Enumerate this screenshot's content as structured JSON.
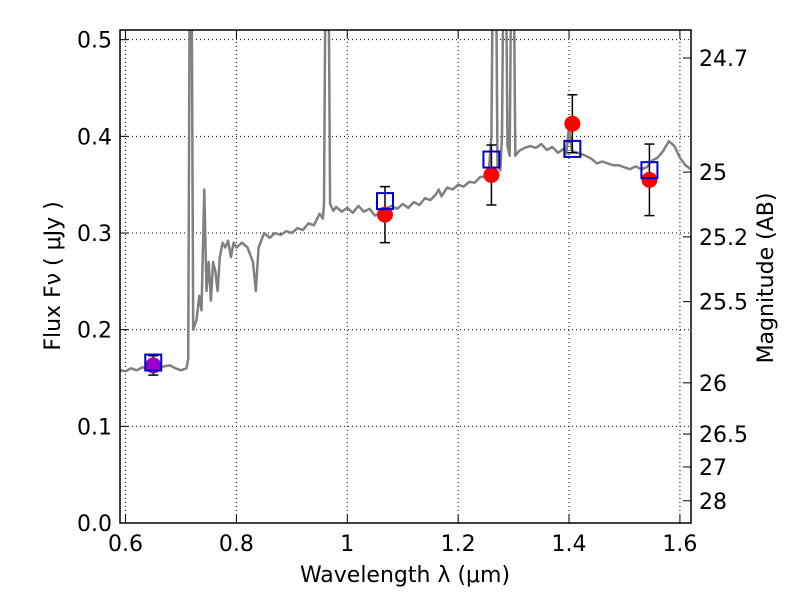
{
  "chart_data": {
    "type": "scatter",
    "xlabel": "Wavelength  λ (μm)",
    "ylabel": "Flux  Fν  ( μJy )",
    "y2label": "Magnitude (AB)",
    "xlim": [
      0.59,
      1.62
    ],
    "ylim": [
      0.0,
      0.51
    ],
    "xticks": [
      0.6,
      0.8,
      1.0,
      1.2,
      1.4,
      1.6
    ],
    "xtick_labels": [
      "0.6",
      "0.8",
      "1",
      "1.2",
      "1.4",
      "1.6"
    ],
    "yticks": [
      0.0,
      0.1,
      0.2,
      0.3,
      0.4,
      0.5
    ],
    "ytick_labels": [
      "0.0",
      "0.1",
      "0.2",
      "0.3",
      "0.4",
      "0.5"
    ],
    "y2ticks": [
      {
        "flux": 0.481,
        "label": "24.7"
      },
      {
        "flux": 0.363,
        "label": "25"
      },
      {
        "flux": 0.296,
        "label": "25.2"
      },
      {
        "flux": 0.229,
        "label": "25.5"
      },
      {
        "flux": 0.145,
        "label": "26"
      },
      {
        "flux": 0.092,
        "label": "26.5"
      },
      {
        "flux": 0.058,
        "label": "27"
      },
      {
        "flux": 0.023,
        "label": "28"
      }
    ],
    "grid": true,
    "grid_style": "dotted",
    "colors": {
      "model": "#808080",
      "observed": "#ff0000",
      "synthetic": "#0000cc",
      "errorbar": "#000000",
      "overlap": "#9900cc"
    },
    "series": [
      {
        "kind": "line",
        "points": [
          [
            0.59,
            0.158
          ],
          [
            0.6,
            0.157
          ],
          [
            0.61,
            0.16
          ],
          [
            0.62,
            0.158
          ],
          [
            0.63,
            0.161
          ],
          [
            0.64,
            0.16
          ],
          [
            0.65,
            0.163
          ],
          [
            0.66,
            0.161
          ],
          [
            0.67,
            0.162
          ],
          [
            0.68,
            0.163
          ],
          [
            0.69,
            0.16
          ],
          [
            0.7,
            0.158
          ],
          [
            0.71,
            0.16
          ],
          [
            0.713,
            0.17
          ],
          [
            0.716,
            0.6
          ],
          [
            0.719,
            0.6
          ],
          [
            0.722,
            0.2
          ],
          [
            0.728,
            0.21
          ],
          [
            0.733,
            0.235
          ],
          [
            0.737,
            0.22
          ],
          [
            0.742,
            0.345
          ],
          [
            0.746,
            0.24
          ],
          [
            0.75,
            0.27
          ],
          [
            0.754,
            0.23
          ],
          [
            0.758,
            0.27
          ],
          [
            0.762,
            0.26
          ],
          [
            0.766,
            0.24
          ],
          [
            0.77,
            0.275
          ],
          [
            0.775,
            0.29
          ],
          [
            0.78,
            0.285
          ],
          [
            0.785,
            0.292
          ],
          [
            0.79,
            0.275
          ],
          [
            0.795,
            0.29
          ],
          [
            0.8,
            0.285
          ],
          [
            0.81,
            0.29
          ],
          [
            0.82,
            0.285
          ],
          [
            0.83,
            0.27
          ],
          [
            0.835,
            0.24
          ],
          [
            0.84,
            0.285
          ],
          [
            0.85,
            0.3
          ],
          [
            0.86,
            0.295
          ],
          [
            0.87,
            0.3
          ],
          [
            0.88,
            0.298
          ],
          [
            0.89,
            0.302
          ],
          [
            0.9,
            0.3
          ],
          [
            0.91,
            0.305
          ],
          [
            0.92,
            0.303
          ],
          [
            0.93,
            0.31
          ],
          [
            0.94,
            0.308
          ],
          [
            0.95,
            0.32
          ],
          [
            0.956,
            0.315
          ],
          [
            0.958,
            0.33
          ],
          [
            0.961,
            0.6
          ],
          [
            0.966,
            0.6
          ],
          [
            0.969,
            0.33
          ],
          [
            0.975,
            0.323
          ],
          [
            0.98,
            0.327
          ],
          [
            0.99,
            0.322
          ],
          [
            1.0,
            0.326
          ],
          [
            1.01,
            0.321
          ],
          [
            1.02,
            0.328
          ],
          [
            1.03,
            0.322
          ],
          [
            1.04,
            0.325
          ],
          [
            1.05,
            0.318
          ],
          [
            1.06,
            0.32
          ],
          [
            1.07,
            0.325
          ],
          [
            1.08,
            0.328
          ],
          [
            1.09,
            0.325
          ],
          [
            1.1,
            0.33
          ],
          [
            1.11,
            0.326
          ],
          [
            1.12,
            0.332
          ],
          [
            1.13,
            0.329
          ],
          [
            1.14,
            0.336
          ],
          [
            1.15,
            0.334
          ],
          [
            1.16,
            0.34
          ],
          [
            1.165,
            0.345
          ],
          [
            1.17,
            0.338
          ],
          [
            1.18,
            0.347
          ],
          [
            1.19,
            0.345
          ],
          [
            1.2,
            0.35
          ],
          [
            1.21,
            0.348
          ],
          [
            1.22,
            0.353
          ],
          [
            1.23,
            0.352
          ],
          [
            1.24,
            0.358
          ],
          [
            1.25,
            0.358
          ],
          [
            1.255,
            0.362
          ],
          [
            1.26,
            0.4
          ],
          [
            1.263,
            0.6
          ],
          [
            1.268,
            0.6
          ],
          [
            1.271,
            0.37
          ],
          [
            1.276,
            0.365
          ],
          [
            1.279,
            0.4
          ],
          [
            1.282,
            0.6
          ],
          [
            1.286,
            0.6
          ],
          [
            1.289,
            0.39
          ],
          [
            1.293,
            0.38
          ],
          [
            1.296,
            0.6
          ],
          [
            1.3,
            0.6
          ],
          [
            1.303,
            0.38
          ],
          [
            1.31,
            0.385
          ],
          [
            1.32,
            0.388
          ],
          [
            1.33,
            0.39
          ],
          [
            1.34,
            0.388
          ],
          [
            1.35,
            0.392
          ],
          [
            1.36,
            0.386
          ],
          [
            1.37,
            0.389
          ],
          [
            1.38,
            0.383
          ],
          [
            1.39,
            0.387
          ],
          [
            1.395,
            0.382
          ],
          [
            1.4,
            0.41
          ],
          [
            1.405,
            0.385
          ],
          [
            1.41,
            0.384
          ],
          [
            1.42,
            0.382
          ],
          [
            1.43,
            0.38
          ],
          [
            1.44,
            0.377
          ],
          [
            1.45,
            0.372
          ],
          [
            1.46,
            0.374
          ],
          [
            1.47,
            0.372
          ],
          [
            1.48,
            0.37
          ],
          [
            1.49,
            0.37
          ],
          [
            1.5,
            0.368
          ],
          [
            1.51,
            0.366
          ],
          [
            1.52,
            0.369
          ],
          [
            1.53,
            0.366
          ],
          [
            1.54,
            0.368
          ],
          [
            1.55,
            0.375
          ],
          [
            1.56,
            0.378
          ],
          [
            1.57,
            0.385
          ],
          [
            1.58,
            0.395
          ],
          [
            1.59,
            0.39
          ],
          [
            1.6,
            0.378
          ],
          [
            1.61,
            0.37
          ],
          [
            1.62,
            0.366
          ]
        ]
      },
      {
        "kind": "points",
        "marker": "circle",
        "points": [
          {
            "x": 0.65,
            "y": 0.163,
            "err": 0.01
          },
          {
            "x": 1.068,
            "y": 0.319,
            "err": 0.029
          },
          {
            "x": 1.26,
            "y": 0.36,
            "err": 0.031
          },
          {
            "x": 1.406,
            "y": 0.413,
            "err": 0.03
          },
          {
            "x": 1.545,
            "y": 0.355,
            "err": 0.037
          }
        ]
      },
      {
        "kind": "points",
        "marker": "square",
        "points": [
          {
            "x": 0.65,
            "y": 0.166
          },
          {
            "x": 1.068,
            "y": 0.333
          },
          {
            "x": 1.26,
            "y": 0.376
          },
          {
            "x": 1.406,
            "y": 0.387
          },
          {
            "x": 1.545,
            "y": 0.365
          }
        ]
      }
    ]
  }
}
